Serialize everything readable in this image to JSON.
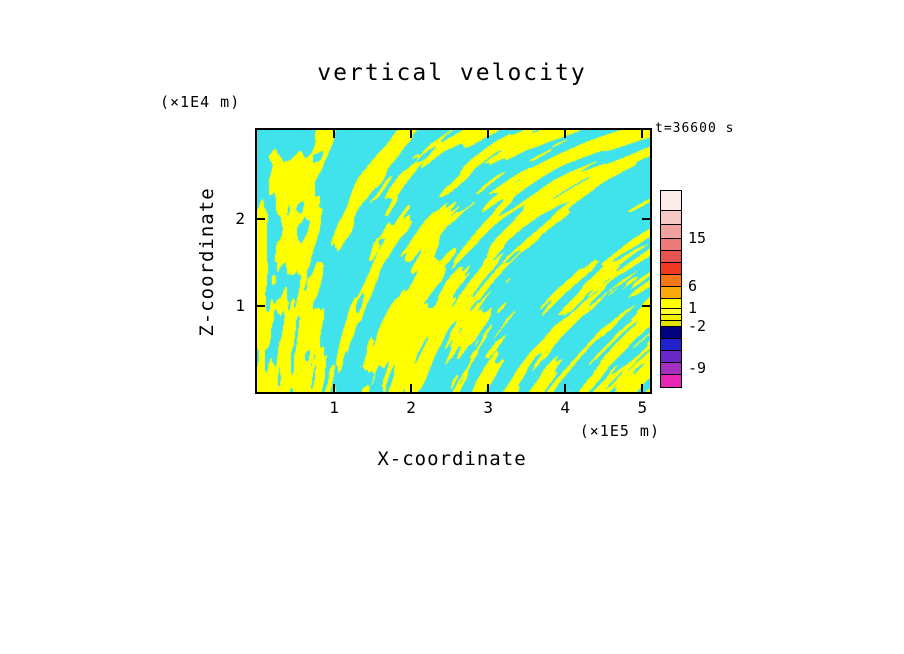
{
  "chart_data": {
    "type": "heatmap",
    "title": "vertical velocity",
    "annotation": "t=36600 s",
    "xlabel": "X-coordinate",
    "x_unit": "(×1E5 m)",
    "ylabel": "Z-coordinate",
    "y_unit": "(×1E4 m)",
    "x_range": [
      0,
      5.1
    ],
    "y_range": [
      0,
      3.03
    ],
    "x_ticks": [
      "1",
      "2",
      "3",
      "4",
      "5"
    ],
    "y_ticks": [
      "1",
      "2"
    ],
    "grid": false,
    "legend_position": "right-colorbar",
    "field": {
      "description": "Two-level filled contour of vertical velocity in an x-z plane at t=36600 s: positive updraft regions rendered yellow, negative downdraft regions rendered cyan; turbulent, vertically elongated filament structures, finer near the bottom of the domain.",
      "positive_color": "#FFFF00",
      "negative_color": "#40E2EC",
      "threshold": 0.515,
      "seed": 1337,
      "octaves": 3,
      "fx_base": 0.04,
      "fx_gain": 0.08,
      "fy": 0.02,
      "lacunarity": 2.0,
      "gain": 0.5
    },
    "colorbar": {
      "tick_labels": [
        {
          "text": "15",
          "offset": 48
        },
        {
          "text": "6",
          "offset": 96
        },
        {
          "text": "1",
          "offset": 118
        },
        {
          "text": "-2",
          "offset": 136
        },
        {
          "text": "-9",
          "offset": 178
        }
      ],
      "segments_top_to_bottom": [
        {
          "color": "#FBEBE9",
          "h": 20
        },
        {
          "color": "#F7C9C5",
          "h": 14
        },
        {
          "color": "#F2A29E",
          "h": 14
        },
        {
          "color": "#EC7A76",
          "h": 12
        },
        {
          "color": "#E65450",
          "h": 12
        },
        {
          "color": "#EE3A20",
          "h": 12
        },
        {
          "color": "#F57716",
          "h": 12
        },
        {
          "color": "#F9A80C",
          "h": 12
        },
        {
          "color": "#FFFF00",
          "h": 10
        },
        {
          "color": "#FFFF30",
          "h": 6
        },
        {
          "color": "#F2F200",
          "h": 6
        },
        {
          "color": "#E0E000",
          "h": 6
        },
        {
          "color": "#000082",
          "h": 12
        },
        {
          "color": "#2222CC",
          "h": 12
        },
        {
          "color": "#6A28C8",
          "h": 12
        },
        {
          "color": "#A430BE",
          "h": 12
        },
        {
          "color": "#E628B4",
          "h": 12
        }
      ]
    }
  }
}
